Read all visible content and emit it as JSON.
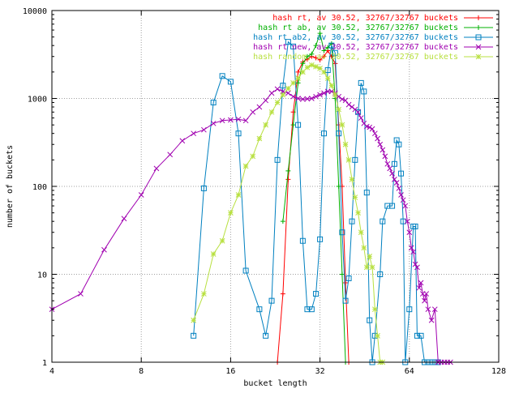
{
  "chart_data": {
    "type": "line",
    "xlabel": "bucket length",
    "ylabel": "number of buckets",
    "xscale": "log2",
    "yscale": "log10",
    "xlim": [
      4,
      128
    ],
    "ylim": [
      1,
      10000
    ],
    "x_ticks": [
      4,
      8,
      16,
      32,
      64,
      128
    ],
    "y_ticks": [
      1,
      10,
      100,
      1000,
      10000
    ],
    "x_tick_labels": [
      "4",
      "8",
      "16",
      "32",
      "64",
      "128"
    ],
    "y_tick_labels": [
      "1",
      "10",
      "100",
      "1000",
      "10000"
    ],
    "grid": true,
    "legend_position": "top-right",
    "series": [
      {
        "name": "hash rt, av 30.52, 32767/32767 buckets",
        "color": "#ff0000",
        "marker": "plus",
        "points": [
          [
            23,
            1
          ],
          [
            24,
            6
          ],
          [
            25,
            120
          ],
          [
            26,
            700
          ],
          [
            27,
            2000
          ],
          [
            28,
            2600
          ],
          [
            29,
            2800
          ],
          [
            30,
            3000
          ],
          [
            31,
            2900
          ],
          [
            32,
            2750
          ],
          [
            33,
            3000
          ],
          [
            34,
            3500
          ],
          [
            35,
            3000
          ],
          [
            36,
            2500
          ],
          [
            37,
            500
          ],
          [
            38,
            100
          ],
          [
            39,
            8
          ],
          [
            40,
            1
          ]
        ]
      },
      {
        "name": "hash rt ab, av 30.52, 32767/32767 buckets",
        "color": "#00b000",
        "marker": "plus",
        "points": [
          [
            24,
            40
          ],
          [
            25,
            150
          ],
          [
            26,
            500
          ],
          [
            27,
            1500
          ],
          [
            28,
            2500
          ],
          [
            29,
            3000
          ],
          [
            30,
            3200
          ],
          [
            31,
            4000
          ],
          [
            32,
            5500
          ],
          [
            33,
            3500
          ],
          [
            34,
            3800
          ],
          [
            35,
            4200
          ],
          [
            36,
            1000
          ],
          [
            37,
            100
          ],
          [
            38,
            10
          ],
          [
            39,
            1
          ]
        ]
      },
      {
        "name": "hash rt ab2, av 30.52, 32767/32767 buckets",
        "color": "#0080c0",
        "marker": "square",
        "points": [
          [
            12,
            2
          ],
          [
            13,
            95
          ],
          [
            14,
            900
          ],
          [
            15,
            1800
          ],
          [
            16,
            1550
          ],
          [
            17,
            400
          ],
          [
            18,
            11
          ],
          [
            20,
            4
          ],
          [
            21,
            2
          ],
          [
            22,
            5
          ],
          [
            23,
            200
          ],
          [
            24,
            1400
          ],
          [
            25,
            4400
          ],
          [
            26,
            3900
          ],
          [
            27,
            500
          ],
          [
            28,
            24
          ],
          [
            29,
            4
          ],
          [
            30,
            4
          ],
          [
            31,
            6
          ],
          [
            32,
            25
          ],
          [
            33,
            400
          ],
          [
            34,
            2100
          ],
          [
            35,
            4000
          ],
          [
            36,
            3300
          ],
          [
            37,
            400
          ],
          [
            38,
            30
          ],
          [
            39,
            5
          ],
          [
            40,
            9
          ],
          [
            41,
            40
          ],
          [
            42,
            200
          ],
          [
            43,
            700
          ],
          [
            44,
            1500
          ],
          [
            45,
            1200
          ],
          [
            46,
            85
          ],
          [
            47,
            3
          ],
          [
            48,
            1
          ],
          [
            49,
            2
          ],
          [
            51,
            10
          ],
          [
            52,
            40
          ],
          [
            54,
            60
          ],
          [
            56,
            60
          ],
          [
            57,
            180
          ],
          [
            58,
            335
          ],
          [
            59,
            300
          ],
          [
            60,
            140
          ],
          [
            61,
            40
          ],
          [
            62,
            1
          ],
          [
            64,
            4
          ],
          [
            66,
            35
          ],
          [
            67,
            35
          ],
          [
            68,
            2
          ],
          [
            70,
            2
          ],
          [
            72,
            1
          ],
          [
            74,
            1
          ],
          [
            76,
            1
          ],
          [
            78,
            1
          ],
          [
            80,
            1
          ]
        ]
      },
      {
        "name": "hash rt new, av 30.52, 32767/32767 buckets",
        "color": "#a000b0",
        "marker": "cross",
        "points": [
          [
            4,
            4
          ],
          [
            5,
            6
          ],
          [
            6,
            19
          ],
          [
            7,
            43
          ],
          [
            8,
            80
          ],
          [
            9,
            160
          ],
          [
            10,
            230
          ],
          [
            11,
            330
          ],
          [
            12,
            400
          ],
          [
            13,
            440
          ],
          [
            14,
            520
          ],
          [
            15,
            560
          ],
          [
            16,
            570
          ],
          [
            17,
            580
          ],
          [
            18,
            560
          ],
          [
            19,
            700
          ],
          [
            20,
            800
          ],
          [
            21,
            950
          ],
          [
            22,
            1150
          ],
          [
            23,
            1280
          ],
          [
            24,
            1200
          ],
          [
            25,
            1150
          ],
          [
            26,
            1050
          ],
          [
            27,
            1000
          ],
          [
            28,
            980
          ],
          [
            29,
            990
          ],
          [
            30,
            1000
          ],
          [
            31,
            1050
          ],
          [
            32,
            1100
          ],
          [
            33,
            1150
          ],
          [
            34,
            1200
          ],
          [
            35,
            1200
          ],
          [
            36,
            1150
          ],
          [
            37,
            1050
          ],
          [
            38,
            980
          ],
          [
            39,
            950
          ],
          [
            40,
            850
          ],
          [
            41,
            800
          ],
          [
            42,
            750
          ],
          [
            43,
            700
          ],
          [
            44,
            600
          ],
          [
            45,
            520
          ],
          [
            46,
            480
          ],
          [
            47,
            470
          ],
          [
            48,
            450
          ],
          [
            49,
            400
          ],
          [
            50,
            350
          ],
          [
            51,
            300
          ],
          [
            52,
            260
          ],
          [
            53,
            220
          ],
          [
            54,
            180
          ],
          [
            55,
            160
          ],
          [
            56,
            140
          ],
          [
            57,
            120
          ],
          [
            58,
            110
          ],
          [
            59,
            95
          ],
          [
            60,
            80
          ],
          [
            61,
            70
          ],
          [
            62,
            60
          ],
          [
            63,
            40
          ],
          [
            64,
            30
          ],
          [
            65,
            20
          ],
          [
            66,
            18
          ],
          [
            67,
            13
          ],
          [
            68,
            12
          ],
          [
            69,
            7
          ],
          [
            70,
            8
          ],
          [
            71,
            6
          ],
          [
            72,
            5
          ],
          [
            73,
            6
          ],
          [
            74,
            4
          ],
          [
            76,
            3
          ],
          [
            78,
            4
          ],
          [
            80,
            1
          ],
          [
            82,
            1
          ],
          [
            84,
            1
          ],
          [
            86,
            1
          ],
          [
            88,
            1
          ]
        ]
      },
      {
        "name": "hash random, av 30.52, 32767/32767 buckets",
        "color": "#b8e040",
        "marker": "star",
        "points": [
          [
            12,
            3
          ],
          [
            13,
            6
          ],
          [
            14,
            17
          ],
          [
            15,
            24
          ],
          [
            16,
            50
          ],
          [
            17,
            80
          ],
          [
            18,
            170
          ],
          [
            19,
            220
          ],
          [
            20,
            350
          ],
          [
            21,
            500
          ],
          [
            22,
            700
          ],
          [
            23,
            900
          ],
          [
            24,
            1100
          ],
          [
            25,
            1300
          ],
          [
            26,
            1500
          ],
          [
            27,
            1700
          ],
          [
            28,
            2000
          ],
          [
            29,
            2250
          ],
          [
            30,
            2400
          ],
          [
            31,
            2300
          ],
          [
            32,
            2200
          ],
          [
            33,
            2000
          ],
          [
            34,
            1700
          ],
          [
            35,
            1400
          ],
          [
            36,
            1100
          ],
          [
            37,
            750
          ],
          [
            38,
            500
          ],
          [
            39,
            300
          ],
          [
            40,
            200
          ],
          [
            41,
            120
          ],
          [
            42,
            75
          ],
          [
            43,
            50
          ],
          [
            44,
            30
          ],
          [
            45,
            20
          ],
          [
            46,
            12
          ],
          [
            47,
            16
          ],
          [
            48,
            12
          ],
          [
            49,
            4
          ],
          [
            50,
            2
          ],
          [
            51,
            1
          ],
          [
            52,
            1
          ]
        ]
      }
    ]
  }
}
